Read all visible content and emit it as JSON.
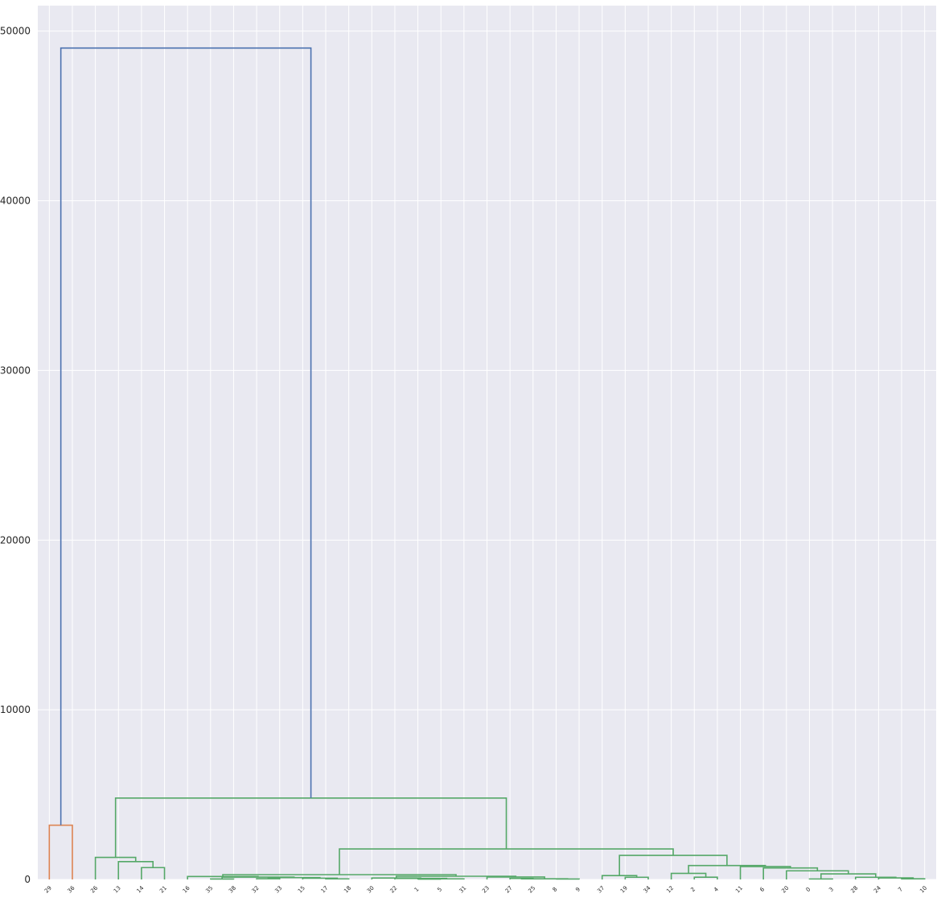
{
  "chart_data": {
    "type": "dendrogram",
    "title": "",
    "xlabel": "",
    "ylabel": "",
    "ylim": [
      0,
      51500
    ],
    "yticks": [
      0,
      10000,
      20000,
      30000,
      40000,
      50000
    ],
    "grid": true,
    "background": "#e9e9f1",
    "grid_color": "#ffffff",
    "leaves": [
      "29",
      "36",
      "26",
      "13",
      "14",
      "21",
      "16",
      "35",
      "38",
      "32",
      "33",
      "15",
      "17",
      "18",
      "30",
      "22",
      "1",
      "5",
      "31",
      "23",
      "27",
      "25",
      "8",
      "9",
      "37",
      "19",
      "34",
      "12",
      "2",
      "4",
      "11",
      "6",
      "20",
      "0",
      "3",
      "28",
      "24",
      "7",
      "10"
    ],
    "colors": {
      "above": "#4c72b0",
      "cluster1": "#dd8452",
      "cluster2": "#55a868"
    },
    "links": [
      {
        "a": "L:1",
        "b": "L:2",
        "h": 3200,
        "color": "cluster1",
        "id": "c29_36"
      },
      {
        "a": "L:5",
        "b": "L:6",
        "h": 700,
        "color": "cluster2",
        "id": "c14_21"
      },
      {
        "a": "L:4",
        "b": "c14_21",
        "h": 1050,
        "color": "cluster2",
        "id": "c13_14_21"
      },
      {
        "a": "L:3",
        "b": "c13_14_21",
        "h": 1300,
        "color": "cluster2",
        "id": "c26_21"
      },
      {
        "a": "L:8",
        "b": "L:9",
        "h": 25,
        "color": "cluster2",
        "id": "c35_38"
      },
      {
        "a": "L:10",
        "b": "L:11",
        "h": 45,
        "color": "cluster2",
        "id": "c32_33"
      },
      {
        "a": "L:13",
        "b": "L:14",
        "h": 35,
        "color": "cluster2",
        "id": "c17_18"
      },
      {
        "a": "L:12",
        "b": "c17_18",
        "h": 75,
        "color": "cluster2",
        "id": "c15_18"
      },
      {
        "a": "c32_33",
        "b": "c15_18",
        "h": 110,
        "color": "cluster2",
        "id": "c32_18"
      },
      {
        "a": "c35_38",
        "b": "c32_18",
        "h": 140,
        "color": "cluster2",
        "id": "c35_18"
      },
      {
        "a": "L:7",
        "b": "c35_18",
        "h": 175,
        "color": "cluster2",
        "id": "c16_18"
      },
      {
        "a": "L:17",
        "b": "L:18",
        "h": 20,
        "color": "cluster2",
        "id": "c1_5"
      },
      {
        "a": "c1_5",
        "b": "L:19",
        "h": 35,
        "color": "cluster2",
        "id": "c1_31"
      },
      {
        "a": "L:16",
        "b": "c1_31",
        "h": 60,
        "color": "cluster2",
        "id": "c22_31"
      },
      {
        "a": "L:15",
        "b": "c22_31",
        "h": 85,
        "color": "cluster2",
        "id": "c30_31"
      },
      {
        "a": "L:21",
        "b": "L:22",
        "h": 60,
        "color": "cluster2",
        "id": "c27_25"
      },
      {
        "a": "L:23",
        "b": "L:24",
        "h": 25,
        "color": "cluster2",
        "id": "c8_9"
      },
      {
        "a": "c27_25",
        "b": "c8_9",
        "h": 40,
        "color": "cluster2",
        "id": "c27_9"
      },
      {
        "a": "L:20",
        "b": "c27_9",
        "h": 145,
        "color": "cluster2",
        "id": "c23_9"
      },
      {
        "a": "c30_31",
        "b": "c23_9",
        "h": 190,
        "color": "cluster2",
        "id": "c30_9"
      },
      {
        "a": "c16_18",
        "b": "c30_9",
        "h": 285,
        "color": "cluster2",
        "id": "c16_9"
      },
      {
        "a": "L:26",
        "b": "L:27",
        "h": 130,
        "color": "cluster2",
        "id": "c19_34"
      },
      {
        "a": "L:25",
        "b": "c19_34",
        "h": 230,
        "color": "cluster2",
        "id": "c37_34"
      },
      {
        "a": "L:29",
        "b": "L:30",
        "h": 135,
        "color": "cluster2",
        "id": "c2_4"
      },
      {
        "a": "L:28",
        "b": "c2_4",
        "h": 360,
        "color": "cluster2",
        "id": "c12_4"
      },
      {
        "a": "L:34",
        "b": "L:35",
        "h": 30,
        "color": "cluster2",
        "id": "c0_3"
      },
      {
        "a": "L:38",
        "b": "L:39",
        "h": 40,
        "color": "cluster2",
        "id": "c7_10"
      },
      {
        "a": "L:37",
        "b": "c7_10",
        "h": 90,
        "color": "cluster2",
        "id": "c24_10"
      },
      {
        "a": "L:36",
        "b": "c24_10",
        "h": 130,
        "color": "cluster2",
        "id": "c28_10"
      },
      {
        "a": "c0_3",
        "b": "c28_10",
        "h": 330,
        "color": "cluster2",
        "id": "c0_10"
      },
      {
        "a": "L:33",
        "b": "c0_10",
        "h": 510,
        "color": "cluster2",
        "id": "c20_10"
      },
      {
        "a": "L:32",
        "b": "c20_10",
        "h": 680,
        "color": "cluster2",
        "id": "c6_10"
      },
      {
        "a": "L:31",
        "b": "c6_10",
        "h": 760,
        "color": "cluster2",
        "id": "c11_10"
      },
      {
        "a": "c12_4",
        "b": "c11_10",
        "h": 820,
        "color": "cluster2",
        "id": "c12_10"
      },
      {
        "a": "c37_34",
        "b": "c12_10",
        "h": 1420,
        "color": "cluster2",
        "id": "c37_10"
      },
      {
        "a": "c16_9",
        "b": "c37_10",
        "h": 1800,
        "color": "cluster2",
        "id": "c16_10"
      },
      {
        "a": "c26_21",
        "b": "c16_10",
        "h": 4800,
        "color": "cluster2",
        "id": "c26_10"
      },
      {
        "a": "c29_36",
        "b": "c26_10",
        "h": 49000,
        "color": "above",
        "id": "root"
      }
    ]
  }
}
